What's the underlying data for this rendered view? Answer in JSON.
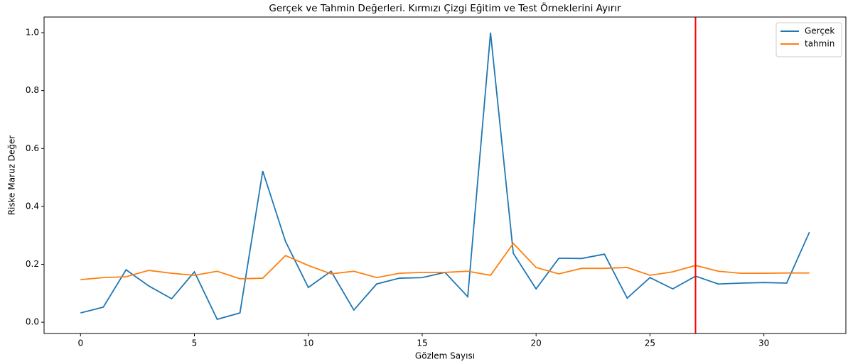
{
  "chart_data": {
    "type": "line",
    "title": "Gerçek ve Tahmin Değerleri. Kırmızı Çizgi Eğitim ve Test Örneklerini Ayırır",
    "xlabel": "Gözlem Sayısı",
    "ylabel": "Riske Maruz Değer",
    "x": [
      0,
      1,
      2,
      3,
      4,
      5,
      6,
      7,
      8,
      9,
      10,
      11,
      12,
      13,
      14,
      15,
      16,
      17,
      18,
      19,
      20,
      21,
      22,
      23,
      24,
      25,
      26,
      27,
      28,
      29,
      30,
      31,
      32
    ],
    "series": [
      {
        "name": "Gerçek",
        "color": "#1f77b4",
        "values": [
          0.032,
          0.052,
          0.181,
          0.125,
          0.081,
          0.174,
          0.01,
          0.032,
          0.522,
          0.279,
          0.12,
          0.176,
          0.042,
          0.132,
          0.152,
          0.154,
          0.172,
          0.088,
          1.0,
          0.238,
          0.115,
          0.221,
          0.22,
          0.235,
          0.083,
          0.154,
          0.115,
          0.159,
          0.132,
          0.135,
          0.137,
          0.135,
          0.311
        ]
      },
      {
        "name": "tahmin",
        "color": "#ff7f0e",
        "values": [
          0.147,
          0.154,
          0.157,
          0.179,
          0.169,
          0.162,
          0.176,
          0.15,
          0.152,
          0.23,
          0.196,
          0.167,
          0.176,
          0.154,
          0.169,
          0.172,
          0.172,
          0.176,
          0.162,
          0.272,
          0.189,
          0.167,
          0.186,
          0.186,
          0.189,
          0.162,
          0.174,
          0.196,
          0.176,
          0.169,
          0.169,
          0.17,
          0.17
        ]
      }
    ],
    "vline": {
      "x": 27,
      "color": "#ff0000"
    },
    "xlim": [
      -1.6,
      33.6
    ],
    "ylim": [
      -0.039,
      1.054
    ],
    "xticks": [
      0,
      5,
      10,
      15,
      20,
      25,
      30
    ],
    "yticks": [
      {
        "value": 0.0,
        "label": "0.0"
      },
      0.2,
      0.4,
      0.6,
      0.8,
      {
        "value": 1.0,
        "label": "1.0"
      }
    ],
    "legend": "upper right"
  }
}
